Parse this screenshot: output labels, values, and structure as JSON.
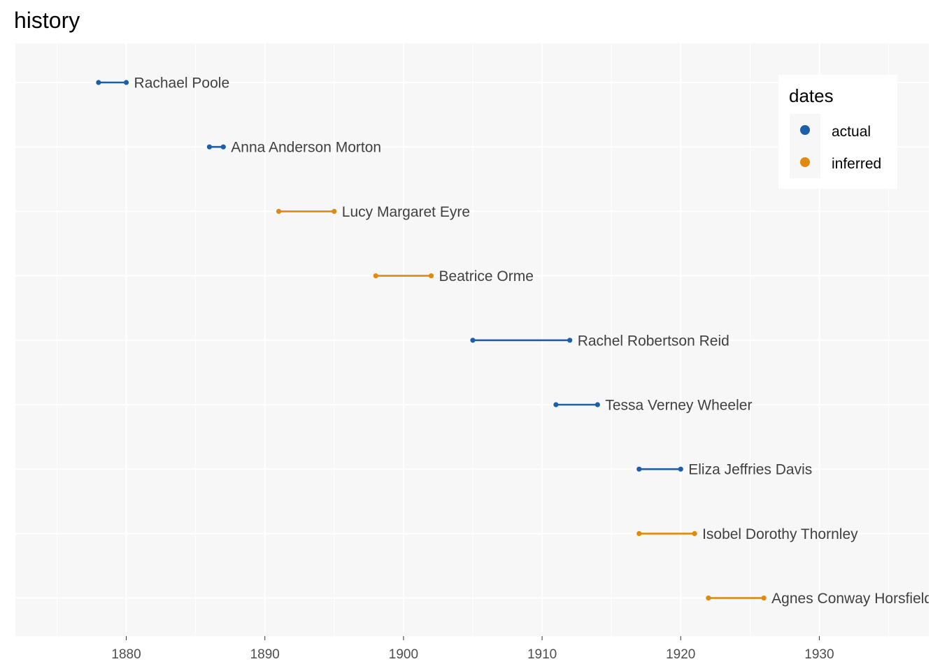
{
  "chart_data": {
    "type": "line",
    "title": "history",
    "xlabel": "",
    "ylabel": "",
    "xlim": [
      1872,
      1937.9
    ],
    "x_ticks": [
      1880,
      1890,
      1900,
      1910,
      1920,
      1930
    ],
    "x_tick_labels": [
      "1880",
      "1890",
      "1900",
      "1910",
      "1920",
      "1930"
    ],
    "grid": true,
    "legend": {
      "title": "dates",
      "position": "top-right",
      "entries": [
        {
          "label": "actual",
          "color": "#1a5fa8"
        },
        {
          "label": "inferred",
          "color": "#e08a12"
        }
      ]
    },
    "series": [
      {
        "label": "Rachael Poole",
        "start": 1878,
        "end": 1880,
        "dates": "actual"
      },
      {
        "label": "Anna Anderson Morton",
        "start": 1886,
        "end": 1887,
        "dates": "actual"
      },
      {
        "label": "Lucy Margaret Eyre",
        "start": 1891,
        "end": 1895,
        "dates": "inferred"
      },
      {
        "label": "Beatrice Orme",
        "start": 1898,
        "end": 1902,
        "dates": "inferred"
      },
      {
        "label": "Rachel Robertson Reid",
        "start": 1905,
        "end": 1912,
        "dates": "actual"
      },
      {
        "label": "Tessa Verney Wheeler",
        "start": 1911,
        "end": 1914,
        "dates": "actual"
      },
      {
        "label": "Eliza Jeffries Davis",
        "start": 1917,
        "end": 1920,
        "dates": "actual"
      },
      {
        "label": "Isobel Dorothy Thornley",
        "start": 1917,
        "end": 1921,
        "dates": "inferred"
      },
      {
        "label": "Agnes Conway Horsfield",
        "start": 1922,
        "end": 1926,
        "dates": "inferred"
      }
    ]
  },
  "colors": {
    "panel": "#f7f7f7",
    "grid": "#ffffff",
    "actual": "#1a5fa8",
    "inferred": "#e08a12"
  }
}
